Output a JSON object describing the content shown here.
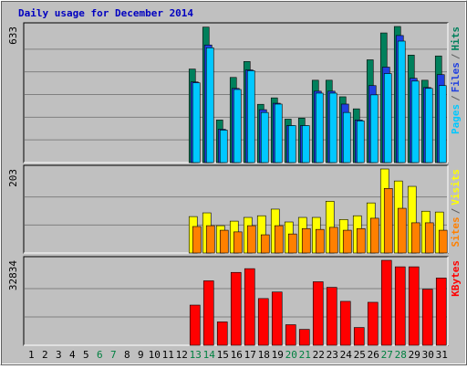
{
  "chart_data": {
    "type": "bar",
    "title": "Daily usage for December 2014",
    "categories": [
      1,
      2,
      3,
      4,
      5,
      6,
      7,
      8,
      9,
      10,
      11,
      12,
      13,
      14,
      15,
      16,
      17,
      18,
      19,
      20,
      21,
      22,
      23,
      24,
      25,
      26,
      27,
      28,
      29,
      30,
      31
    ],
    "category_colors": [
      "#000000",
      "#000000",
      "#000000",
      "#000000",
      "#000000",
      "#008040",
      "#008040",
      "#000000",
      "#000000",
      "#000000",
      "#000000",
      "#000000",
      "#008040",
      "#008040",
      "#000000",
      "#000000",
      "#000000",
      "#000000",
      "#000000",
      "#008040",
      "#008040",
      "#000000",
      "#000000",
      "#000000",
      "#000000",
      "#000000",
      "#008040",
      "#008040",
      "#000000",
      "#000000",
      "#000000"
    ],
    "legend_separator": "/",
    "panels": [
      {
        "ylim": [
          0,
          633
        ],
        "yticks": [
          633
        ],
        "grid_divisions": 6,
        "series": [
          {
            "name": "Hits",
            "color": "#00805c",
            "values": [
              0,
              0,
              0,
              0,
              0,
              0,
              0,
              0,
              0,
              0,
              0,
              0,
              435,
              630,
              198,
              396,
              470,
              271,
              301,
              202,
              207,
              383,
              383,
              306,
              250,
              478,
              603,
              633,
              500,
              383,
              496
            ]
          },
          {
            "name": "Files",
            "color": "#2040e0",
            "values": [
              0,
              0,
              0,
              0,
              0,
              0,
              0,
              0,
              0,
              0,
              0,
              0,
              375,
              547,
              155,
              345,
              431,
              246,
              276,
              172,
              172,
              332,
              332,
              272,
              198,
              358,
              444,
              591,
              392,
              349,
              409
            ]
          },
          {
            "name": "Pages",
            "color": "#00c8ff",
            "values": [
              0,
              0,
              0,
              0,
              0,
              0,
              0,
              0,
              0,
              0,
              0,
              0,
              371,
              534,
              151,
              340,
              427,
              233,
              272,
              172,
              172,
              323,
              323,
              233,
              194,
              315,
              414,
              565,
              379,
              345,
              358
            ]
          }
        ]
      },
      {
        "ylim": [
          0,
          203
        ],
        "yticks": [
          203
        ],
        "grid_divisions": 3,
        "series": [
          {
            "name": "Visits",
            "color": "#ffff00",
            "values": [
              0,
              0,
              0,
              0,
              0,
              0,
              0,
              0,
              0,
              0,
              0,
              0,
              88,
              97,
              66,
              77,
              86,
              90,
              106,
              75,
              86,
              86,
              125,
              81,
              90,
              121,
              203,
              174,
              161,
              101,
              99
            ]
          },
          {
            "name": "Sites",
            "color": "#ff8000",
            "values": [
              0,
              0,
              0,
              0,
              0,
              0,
              0,
              0,
              0,
              0,
              0,
              0,
              64,
              66,
              55,
              51,
              66,
              44,
              66,
              46,
              59,
              57,
              62,
              55,
              59,
              84,
              156,
              108,
              73,
              73,
              55
            ]
          }
        ]
      },
      {
        "ylim": [
          0,
          32834
        ],
        "yticks": [
          32834
        ],
        "grid_divisions": 3,
        "series": [
          {
            "name": "KBytes",
            "color": "#ff0000",
            "values": [
              0,
              0,
              0,
              0,
              0,
              0,
              0,
              0,
              0,
              0,
              0,
              0,
              15525,
              24911,
              9026,
              28160,
              29604,
              18051,
              20578,
              7942,
              6137,
              24550,
              22384,
              16969,
              6859,
              16608,
              32834,
              30327,
              30327,
              21662,
              25994
            ]
          }
        ]
      }
    ]
  }
}
